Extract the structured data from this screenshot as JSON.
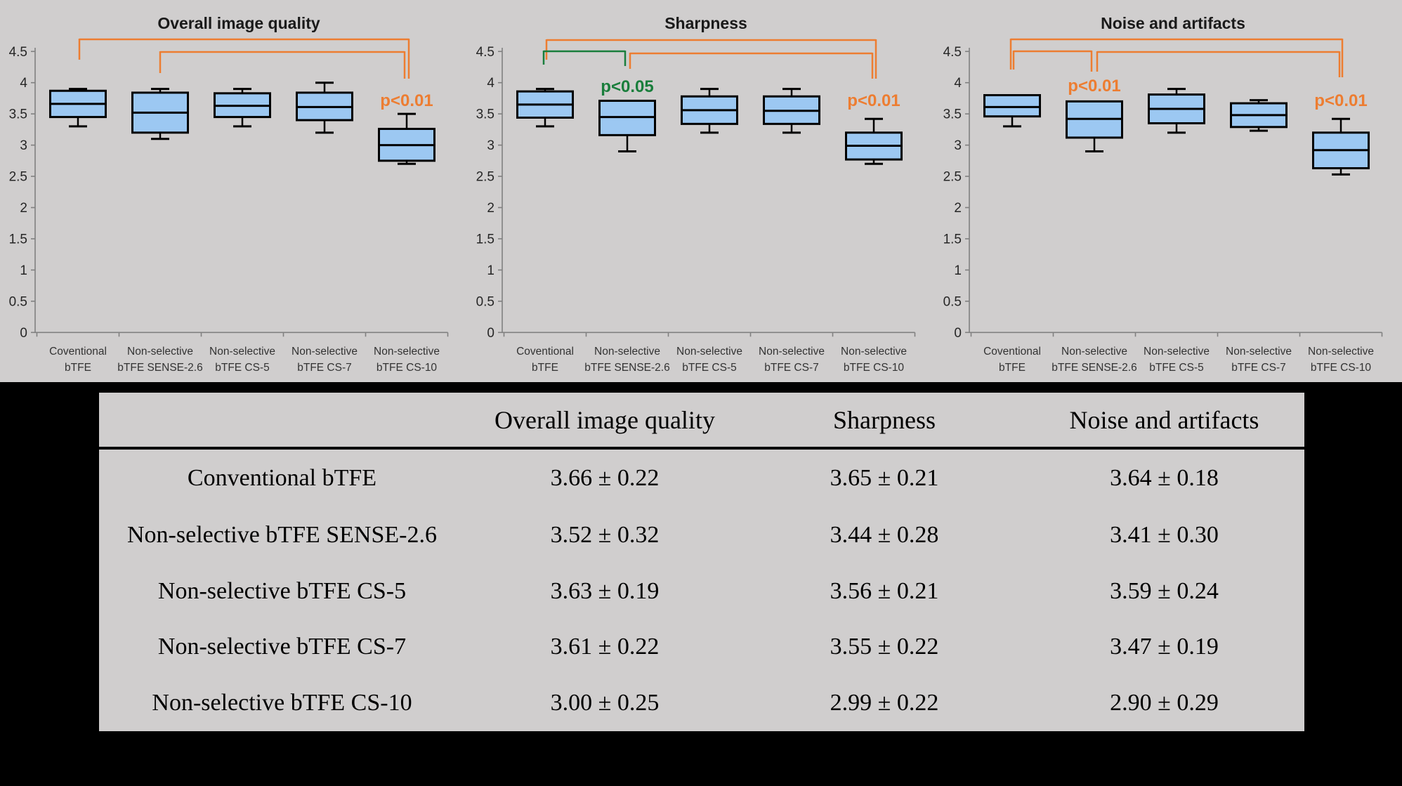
{
  "colors": {
    "background": "#D0CECE",
    "panel_black": "#000000",
    "box_fill": "#9CC8F2",
    "box_border": "#000000",
    "axis_line": "#808080",
    "tick_text": "#262626",
    "title_text": "#1A1A1A",
    "xlabel_text": "#333333",
    "orange": "#ED7D31",
    "green": "#1A7E3C",
    "table_bg": "#D0CECE",
    "table_text": "#000000"
  },
  "chart_data": [
    {
      "type": "boxplot",
      "title": "Overall image quality",
      "ylabel": "",
      "ylim": [
        0,
        4.5
      ],
      "ytick_step": 0.5,
      "grid": false,
      "categories": [
        {
          "line1": "Coventional",
          "line2": "bTFE"
        },
        {
          "line1": "Non-selective",
          "line2": "bTFE SENSE-2.6"
        },
        {
          "line1": "Non-selective",
          "line2": "bTFE CS-5"
        },
        {
          "line1": "Non-selective",
          "line2": "bTFE CS-7"
        },
        {
          "line1": "Non-selective",
          "line2": "bTFE CS-10"
        }
      ],
      "series": [
        {
          "low": 3.3,
          "q1": 3.45,
          "median": 3.66,
          "q3": 3.87,
          "high": 3.9
        },
        {
          "low": 3.1,
          "q1": 3.2,
          "median": 3.52,
          "q3": 3.84,
          "high": 3.9
        },
        {
          "low": 3.3,
          "q1": 3.45,
          "median": 3.63,
          "q3": 3.83,
          "high": 3.9
        },
        {
          "low": 3.2,
          "q1": 3.4,
          "median": 3.61,
          "q3": 3.84,
          "high": 4.0
        },
        {
          "low": 2.7,
          "q1": 2.75,
          "median": 3.0,
          "q3": 3.26,
          "high": 3.5
        }
      ],
      "brackets": [
        {
          "from": 0,
          "to": 4,
          "y": 56,
          "left_drop": 29,
          "right_drop": 56,
          "from_dx": 2,
          "to_dx": 3,
          "color": "orange"
        },
        {
          "from": 1,
          "to": 4,
          "y": 74,
          "left_drop": 30,
          "right_drop": 38,
          "from_dx": 0,
          "to_dx": -3,
          "color": "orange"
        }
      ],
      "p_labels": [
        {
          "text": "p<0.01",
          "series": 4,
          "y": 151,
          "color": "orange"
        }
      ]
    },
    {
      "type": "boxplot",
      "title": "Sharpness",
      "ylabel": "",
      "ylim": [
        0,
        4.5
      ],
      "ytick_step": 0.5,
      "grid": false,
      "categories": [
        {
          "line1": "Coventional",
          "line2": "bTFE"
        },
        {
          "line1": "Non-selective",
          "line2": "bTFE SENSE-2.6"
        },
        {
          "line1": "Non-selective",
          "line2": "bTFE CS-5"
        },
        {
          "line1": "Non-selective",
          "line2": "bTFE CS-7"
        },
        {
          "line1": "Non-selective",
          "line2": "bTFE CS-10"
        }
      ],
      "series": [
        {
          "low": 3.3,
          "q1": 3.44,
          "median": 3.65,
          "q3": 3.86,
          "high": 3.9
        },
        {
          "low": 2.9,
          "q1": 3.16,
          "median": 3.45,
          "q3": 3.71,
          "high": 3.71
        },
        {
          "low": 3.2,
          "q1": 3.34,
          "median": 3.56,
          "q3": 3.78,
          "high": 3.9
        },
        {
          "low": 3.2,
          "q1": 3.34,
          "median": 3.55,
          "q3": 3.78,
          "high": 3.9
        },
        {
          "low": 2.7,
          "q1": 2.77,
          "median": 2.99,
          "q3": 3.2,
          "high": 3.42
        }
      ],
      "brackets": [
        {
          "from": 0,
          "to": 4,
          "y": 57,
          "left_drop": 28,
          "right_drop": 55,
          "from_dx": 2,
          "to_dx": 3,
          "color": "orange"
        },
        {
          "from": 0,
          "to": 1,
          "y": 73,
          "left_drop": 19,
          "right_drop": 21,
          "from_dx": -2,
          "to_dx": -3,
          "color": "green"
        },
        {
          "from": 1,
          "to": 4,
          "y": 76,
          "left_drop": 22,
          "right_drop": 36,
          "from_dx": 4,
          "to_dx": -2,
          "color": "orange"
        }
      ],
      "p_labels": [
        {
          "text": "p<0.05",
          "series": 1,
          "y": 131,
          "color": "green"
        },
        {
          "text": "p<0.01",
          "series": 4,
          "y": 151,
          "color": "orange"
        }
      ]
    },
    {
      "type": "boxplot",
      "title": "Noise and artifacts",
      "ylabel": "",
      "ylim": [
        0,
        4.5
      ],
      "ytick_step": 0.5,
      "grid": false,
      "categories": [
        {
          "line1": "Coventional",
          "line2": "bTFE"
        },
        {
          "line1": "Non-selective",
          "line2": "bTFE SENSE-2.6"
        },
        {
          "line1": "Non-selective",
          "line2": "bTFE CS-5"
        },
        {
          "line1": "Non-selective",
          "line2": "bTFE CS-7"
        },
        {
          "line1": "Non-selective",
          "line2": "bTFE CS-10"
        }
      ],
      "series": [
        {
          "low": 3.3,
          "q1": 3.46,
          "median": 3.61,
          "q3": 3.8,
          "high": 3.8
        },
        {
          "low": 2.9,
          "q1": 3.12,
          "median": 3.42,
          "q3": 3.7,
          "high": 3.7
        },
        {
          "low": 3.2,
          "q1": 3.35,
          "median": 3.58,
          "q3": 3.81,
          "high": 3.9
        },
        {
          "low": 3.23,
          "q1": 3.29,
          "median": 3.48,
          "q3": 3.67,
          "high": 3.72
        },
        {
          "low": 2.53,
          "q1": 2.63,
          "median": 2.92,
          "q3": 3.2,
          "high": 3.42
        }
      ],
      "brackets": [
        {
          "from": 0,
          "to": 4,
          "y": 56,
          "left_drop": 43,
          "right_drop": 54,
          "from_dx": -2,
          "to_dx": 2,
          "color": "orange"
        },
        {
          "from": 0,
          "to": 1,
          "y": 73,
          "left_drop": 26,
          "right_drop": 29,
          "from_dx": 2,
          "to_dx": -4,
          "color": "orange"
        },
        {
          "from": 1,
          "to": 4,
          "y": 74,
          "left_drop": 28,
          "right_drop": 36,
          "from_dx": 4,
          "to_dx": -2,
          "color": "orange"
        }
      ],
      "p_labels": [
        {
          "text": "p<0.01",
          "series": 1,
          "y": 130,
          "color": "orange"
        },
        {
          "text": "p<0.01",
          "series": 4,
          "y": 151,
          "color": "orange"
        }
      ]
    },
    {
      "type": "table",
      "headers": [
        "",
        "Overall image quality",
        "Sharpness",
        "Noise and artifacts"
      ],
      "rows": [
        {
          "label": "Conventional bTFE",
          "values": [
            "3.66 ± 0.22",
            "3.65 ± 0.21",
            "3.64 ± 0.18"
          ]
        },
        {
          "label": "Non-selective bTFE SENSE-2.6",
          "values": [
            "3.52 ± 0.32",
            "3.44 ± 0.28",
            "3.41 ± 0.30"
          ]
        },
        {
          "label": "Non-selective bTFE CS-5",
          "values": [
            "3.63 ± 0.19",
            "3.56 ± 0.21",
            "3.59 ± 0.24"
          ]
        },
        {
          "label": "Non-selective bTFE CS-7",
          "values": [
            "3.61 ± 0.22",
            "3.55 ± 0.22",
            "3.47 ± 0.19"
          ]
        },
        {
          "label": "Non-selective bTFE CS-10",
          "values": [
            "3.00 ± 0.25",
            "2.99 ± 0.22",
            "2.90 ± 0.29"
          ]
        }
      ]
    }
  ]
}
